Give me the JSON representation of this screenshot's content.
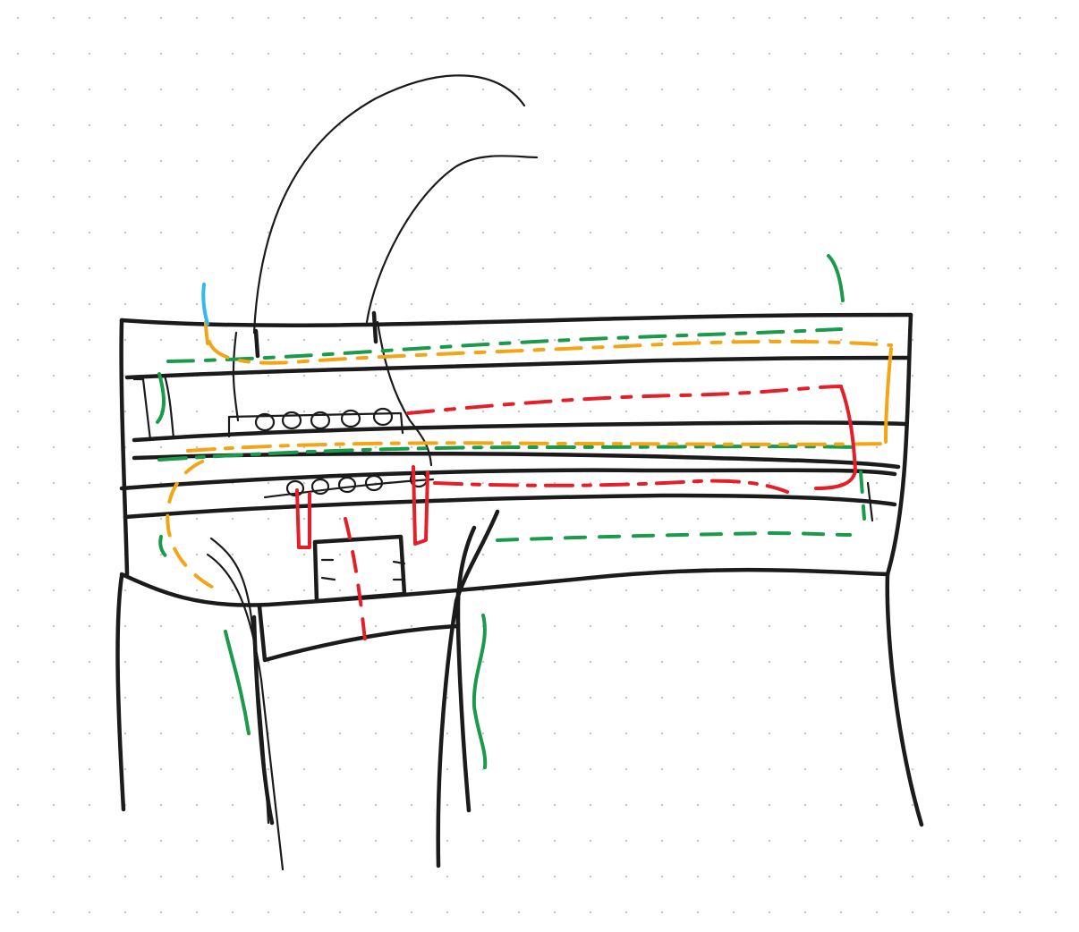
{
  "canvas": {
    "background": "#ffffff",
    "grid_dot_color": "#c8c8c8"
  },
  "colors": {
    "ink": "#1b1b1b",
    "green": "#1a9a4a",
    "orange": "#f2a516",
    "red": "#e32028",
    "blue": "#35b7ef"
  }
}
